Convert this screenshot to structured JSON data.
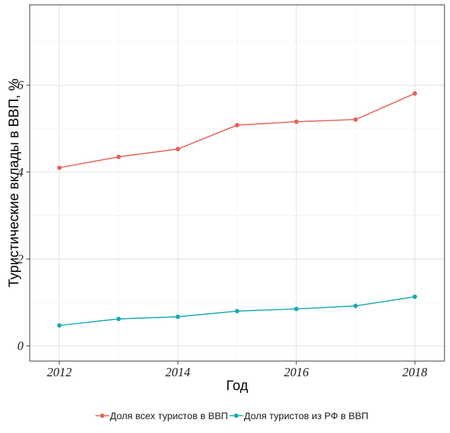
{
  "chart_data": {
    "type": "line",
    "title": "",
    "xlabel": "Год",
    "ylabel": "Туристические вклады в ВВП, %",
    "x": [
      2012,
      2013,
      2014,
      2015,
      2016,
      2017,
      2018
    ],
    "xlim": [
      2011.5,
      2018.5
    ],
    "ylim": [
      -0.35,
      7.85
    ],
    "xticks": [
      2012,
      2014,
      2016,
      2018
    ],
    "yticks": [
      0,
      2,
      4,
      6
    ],
    "grid": true,
    "legend_position": "bottom",
    "series": [
      {
        "name": "Доля всех туристов в ВВП",
        "color": "#E8625A",
        "values": [
          4.1,
          4.35,
          4.53,
          5.08,
          5.16,
          5.21,
          5.81
        ]
      },
      {
        "name": "Доля туристов из РФ в ВВП",
        "color": "#1BAAB1",
        "values": [
          0.47,
          0.62,
          0.67,
          0.8,
          0.85,
          0.92,
          1.13
        ]
      }
    ]
  }
}
